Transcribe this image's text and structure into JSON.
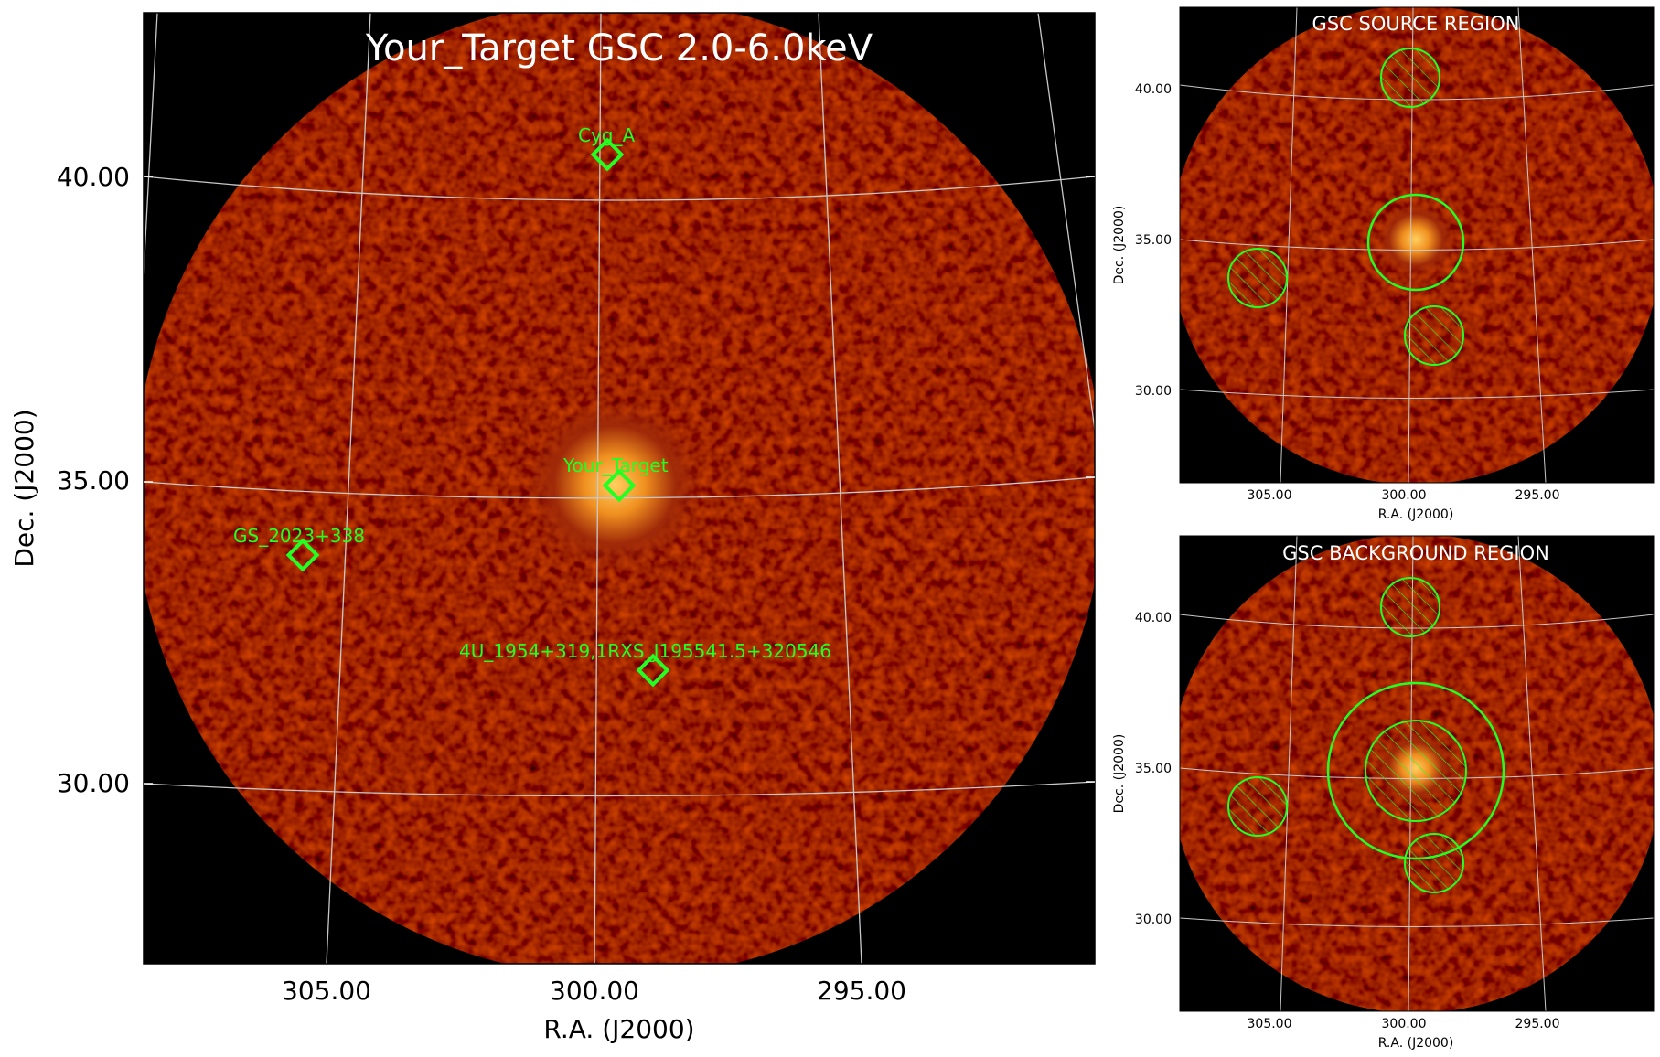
{
  "main_panel": {
    "title": "Your_Target GSC 2.0-6.0keV",
    "xlabel": "R.A. (J2000)",
    "ylabel": "Dec. (J2000)",
    "ra_ticks": [
      "305.00",
      "300.00",
      "295.00"
    ],
    "dec_ticks": [
      "40.00",
      "35.00",
      "30.00"
    ],
    "sources": [
      {
        "label": "Cyg_A",
        "ra": 299.8,
        "dec": 40.4
      },
      {
        "label": "Your_Target",
        "ra": 299.5,
        "dec": 34.9
      },
      {
        "label": "GS_2023+338",
        "ra": 305.5,
        "dec": 33.7
      },
      {
        "label": "4U_1954+319,1RXS_J195541.5+320546",
        "ra": 298.9,
        "dec": 31.9
      }
    ]
  },
  "source_panel": {
    "title": "GSC SOURCE REGION",
    "xlabel": "R.A. (J2000)",
    "ylabel": "Dec. (J2000)",
    "ra_ticks": [
      "305.00",
      "300.00",
      "295.00"
    ],
    "dec_ticks": [
      "40.00",
      "35.00",
      "30.00"
    ]
  },
  "background_panel": {
    "title": "GSC BACKGROUND REGION",
    "xlabel": "R.A. (J2000)",
    "ylabel": "Dec. (J2000)",
    "ra_ticks": [
      "305.00",
      "300.00",
      "295.00"
    ],
    "dec_ticks": [
      "40.00",
      "35.00",
      "30.00"
    ]
  },
  "colors": {
    "sky_background": "#000000",
    "field_glow": "#5a0a04",
    "source_glow": "#ffb030",
    "marker": "#22ff22",
    "grid": "#c8c8c8"
  }
}
